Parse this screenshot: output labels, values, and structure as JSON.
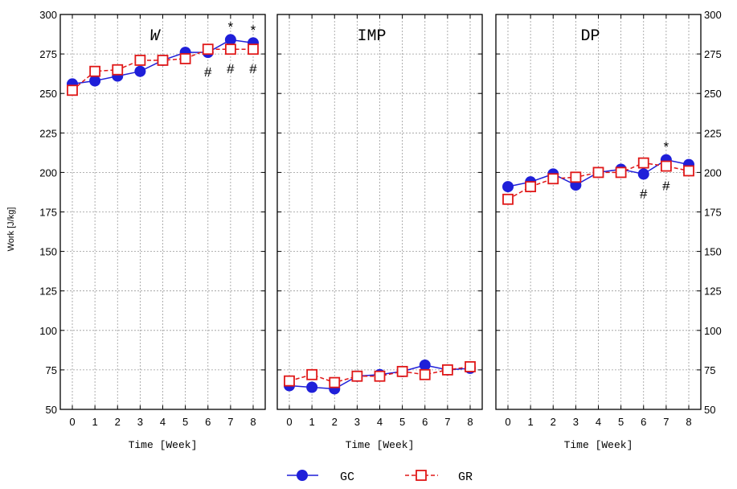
{
  "chart_data": {
    "type": "line",
    "ylabel": "Work [J/kg]",
    "xlabel": "Time [Week]",
    "ylim": [
      50,
      300
    ],
    "yticks": [
      50,
      75,
      100,
      125,
      150,
      175,
      200,
      225,
      250,
      275,
      300
    ],
    "x": [
      0,
      1,
      2,
      3,
      4,
      5,
      6,
      7,
      8
    ],
    "grid": true,
    "legend_position": "bottom-center",
    "series_styles": [
      {
        "name": "GC",
        "color": "#1f1fd9",
        "marker": "filled-circle",
        "line": "solid"
      },
      {
        "name": "GR",
        "color": "#e01818",
        "marker": "open-square",
        "line": "dashed"
      }
    ],
    "panels": [
      {
        "title": "W",
        "italic": true,
        "series": [
          {
            "name": "GC",
            "values": [
              256,
              258,
              261,
              264,
              271,
              276,
              276,
              284,
              282
            ]
          },
          {
            "name": "GR",
            "values": [
              252,
              264,
              265,
              271,
              271,
              272,
              278,
              278,
              278
            ]
          }
        ],
        "annotations": [
          {
            "x": 7,
            "text": "*",
            "row": "top"
          },
          {
            "x": 8,
            "text": "*",
            "row": "top"
          },
          {
            "x": 6,
            "text": "#",
            "row": "bottom"
          },
          {
            "x": 7,
            "text": "#",
            "row": "bottom"
          },
          {
            "x": 8,
            "text": "#",
            "row": "bottom"
          }
        ]
      },
      {
        "title": "IMP",
        "italic": false,
        "series": [
          {
            "name": "GC",
            "values": [
              65,
              64,
              63,
              71,
              72,
              74,
              78,
              75,
              76
            ]
          },
          {
            "name": "GR",
            "values": [
              68,
              72,
              67,
              71,
              71,
              74,
              72,
              75,
              77
            ]
          }
        ],
        "annotations": []
      },
      {
        "title": "DP",
        "italic": false,
        "series": [
          {
            "name": "GC",
            "values": [
              191,
              194,
              199,
              192,
              200,
              202,
              199,
              208,
              205
            ]
          },
          {
            "name": "GR",
            "values": [
              183,
              191,
              196,
              197,
              200,
              200,
              206,
              204,
              201
            ]
          }
        ],
        "annotations": [
          {
            "x": 7,
            "text": "*",
            "row": "top"
          },
          {
            "x": 6,
            "text": "#",
            "row": "bottom"
          },
          {
            "x": 7,
            "text": "#",
            "row": "bottom"
          }
        ]
      }
    ]
  },
  "legend": {
    "items": [
      {
        "label": "GC"
      },
      {
        "label": "GR"
      }
    ]
  }
}
